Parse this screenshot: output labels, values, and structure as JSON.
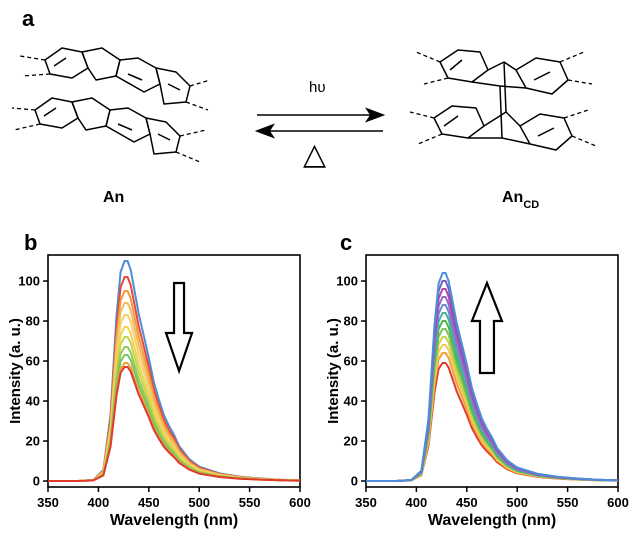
{
  "panels": {
    "a": "a",
    "b": "b",
    "c": "c"
  },
  "scheme": {
    "left_label": "An",
    "right_label_main": "An",
    "right_label_sub": "CD",
    "forward_label": "hυ",
    "reverse_symbol": "△"
  },
  "chart_data": [
    {
      "type": "line",
      "panel": "b",
      "title": "",
      "xlabel": "Wavelength (nm)",
      "ylabel": "Intensity (a. u.)",
      "xlim": [
        350,
        600
      ],
      "ylim": [
        0,
        110
      ],
      "xticks": [
        350,
        400,
        450,
        500,
        550,
        600
      ],
      "yticks": [
        0,
        20,
        40,
        60,
        80,
        100
      ],
      "grid": false,
      "annotation": "down-arrow",
      "x": [
        350,
        380,
        395,
        405,
        412,
        418,
        422,
        426,
        429,
        432,
        436,
        440,
        445,
        450,
        455,
        460,
        465,
        470,
        475,
        480,
        490,
        500,
        520,
        540,
        560,
        580,
        600
      ],
      "peak_heights": [
        110,
        102,
        95,
        89,
        83,
        77,
        72,
        67,
        63,
        59,
        57
      ],
      "series_colors": [
        "#4f8ed6",
        "#e44a3a",
        "#f39a3a",
        "#f5b85a",
        "#f5d070",
        "#ecd64a",
        "#c7d34f",
        "#95c85a",
        "#7cc35a",
        "#f0a03b",
        "#e03a2c"
      ]
    },
    {
      "type": "line",
      "panel": "c",
      "title": "",
      "xlabel": "Wavelength (nm)",
      "ylabel": "Intensity (a. u.)",
      "xlim": [
        350,
        600
      ],
      "ylim": [
        0,
        110
      ],
      "xticks": [
        350,
        400,
        450,
        500,
        550,
        600
      ],
      "yticks": [
        0,
        20,
        40,
        60,
        80,
        100
      ],
      "grid": false,
      "annotation": "up-arrow",
      "x": [
        350,
        380,
        395,
        405,
        412,
        418,
        422,
        426,
        429,
        432,
        436,
        440,
        445,
        450,
        455,
        460,
        465,
        470,
        475,
        480,
        490,
        500,
        520,
        540,
        560,
        580,
        600
      ],
      "peak_heights": [
        59,
        64,
        68,
        72,
        76,
        80,
        84,
        88,
        92,
        96,
        100,
        104
      ],
      "series_colors": [
        "#e03a2c",
        "#f0a03b",
        "#f5c85a",
        "#c7d34f",
        "#7cc35a",
        "#4fb84a",
        "#48b0a0",
        "#6a8fd0",
        "#9b6ac8",
        "#b04aa8",
        "#7a5ec0",
        "#4f8ed6"
      ]
    }
  ]
}
